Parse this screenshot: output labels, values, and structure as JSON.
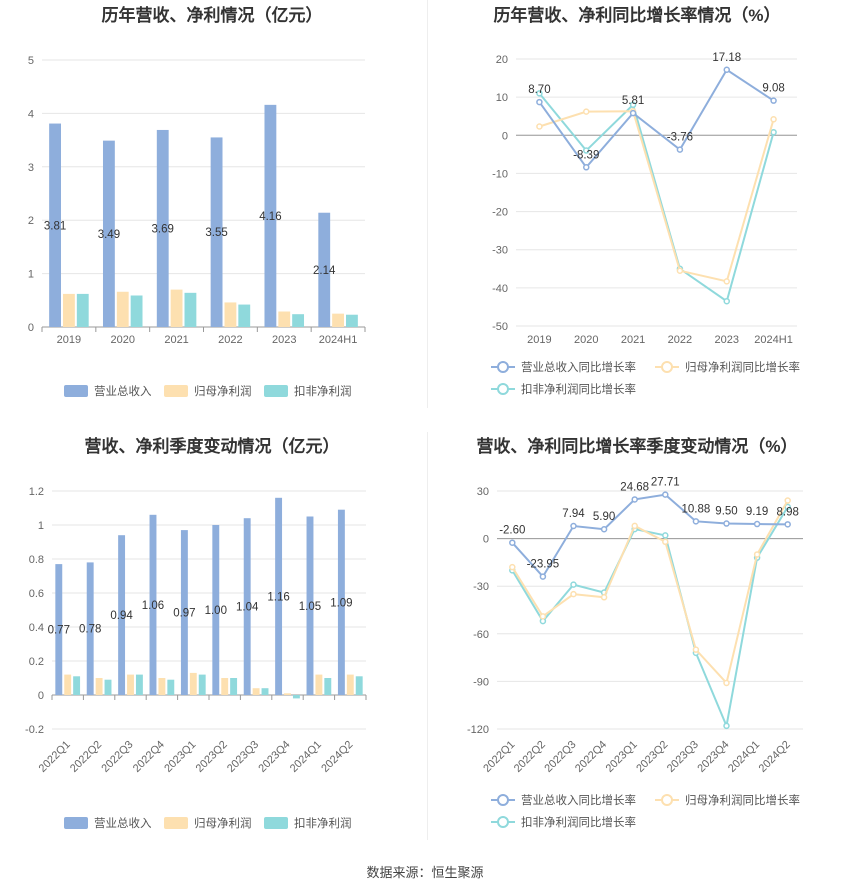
{
  "source_text": "数据来源：恒生聚源",
  "colors": {
    "revenue": "#8eaedc",
    "parent_np": "#fde0b0",
    "deducted_np": "#8fd9dc"
  },
  "chart_data": [
    {
      "id": "annual_amount",
      "type": "bar",
      "title": "历年营收、净利情况（亿元）",
      "categories": [
        "2019",
        "2020",
        "2021",
        "2022",
        "2023",
        "2024H1"
      ],
      "ylim": [
        0,
        5
      ],
      "yticks": [
        "0",
        "1",
        "2",
        "3",
        "4",
        "5"
      ],
      "ytick_values": [
        0,
        1,
        2,
        3,
        4,
        5
      ],
      "grid": true,
      "legend": "bottom",
      "series": [
        {
          "name": "营业总收入",
          "values": [
            3.81,
            3.49,
            3.69,
            3.55,
            4.16,
            2.14
          ],
          "labels": [
            "3.81",
            "3.49",
            "3.69",
            "3.55",
            "4.16",
            "2.14"
          ]
        },
        {
          "name": "归母净利润",
          "values": [
            0.62,
            0.66,
            0.7,
            0.46,
            0.29,
            0.25
          ]
        },
        {
          "name": "扣非净利润",
          "values": [
            0.62,
            0.59,
            0.64,
            0.42,
            0.24,
            0.23
          ]
        }
      ]
    },
    {
      "id": "annual_growth",
      "type": "line",
      "title": "历年营收、净利同比增长率情况（%）",
      "categories": [
        "2019",
        "2020",
        "2021",
        "2022",
        "2023",
        "2024H1"
      ],
      "ylim": [
        -50,
        20
      ],
      "yticks": [
        "-50",
        "-40",
        "-30",
        "-20",
        "-10",
        "0",
        "10",
        "20"
      ],
      "ytick_values": [
        -50,
        -40,
        -30,
        -20,
        -10,
        0,
        10,
        20
      ],
      "grid": true,
      "legend": "bottom",
      "series": [
        {
          "name": "营业总收入同比增长率",
          "values": [
            8.7,
            -8.39,
            5.81,
            -3.76,
            17.18,
            9.08
          ],
          "labels": [
            "8.70",
            "-8.39",
            "5.81",
            "-3.76",
            "17.18",
            "9.08"
          ]
        },
        {
          "name": "归母净利润同比增长率",
          "values": [
            2.3,
            6.2,
            6.3,
            -35.5,
            -38.3,
            4.2
          ]
        },
        {
          "name": "扣非净利润同比增长率",
          "values": [
            11.0,
            -4.0,
            8.0,
            -35.0,
            -43.5,
            0.8
          ]
        }
      ]
    },
    {
      "id": "quarterly_amount",
      "type": "bar",
      "title": "营收、净利季度变动情况（亿元）",
      "categories": [
        "2022Q1",
        "2022Q2",
        "2022Q3",
        "2022Q4",
        "2023Q1",
        "2023Q2",
        "2023Q3",
        "2023Q4",
        "2024Q1",
        "2024Q2"
      ],
      "ylim": [
        -0.2,
        1.2
      ],
      "yticks": [
        "-0.2",
        "0",
        "0.2",
        "0.4",
        "0.6",
        "0.8",
        "1",
        "1.2"
      ],
      "ytick_values": [
        -0.2,
        0,
        0.2,
        0.4,
        0.6,
        0.8,
        1.0,
        1.2
      ],
      "grid": true,
      "legend": "bottom",
      "series": [
        {
          "name": "营业总收入",
          "values": [
            0.77,
            0.78,
            0.94,
            1.06,
            0.97,
            1.0,
            1.04,
            1.16,
            1.05,
            1.09
          ],
          "labels": [
            "0.77",
            "0.78",
            "0.94",
            "1.06",
            "0.97",
            "1.00",
            "1.04",
            "1.16",
            "1.05",
            "1.09"
          ]
        },
        {
          "name": "归母净利润",
          "values": [
            0.12,
            0.1,
            0.12,
            0.1,
            0.13,
            0.1,
            0.04,
            0.01,
            0.12,
            0.12
          ]
        },
        {
          "name": "扣非净利润",
          "values": [
            0.11,
            0.09,
            0.12,
            0.09,
            0.12,
            0.1,
            0.04,
            -0.02,
            0.1,
            0.11
          ]
        }
      ]
    },
    {
      "id": "quarterly_growth",
      "type": "line",
      "title": "营收、净利同比增长率季度变动情况（%）",
      "categories": [
        "2022Q1",
        "2022Q2",
        "2022Q3",
        "2022Q4",
        "2023Q1",
        "2023Q2",
        "2023Q3",
        "2023Q4",
        "2024Q1",
        "2024Q2"
      ],
      "ylim": [
        -120,
        30
      ],
      "yticks": [
        "-120",
        "-90",
        "-60",
        "-30",
        "0",
        "30"
      ],
      "ytick_values": [
        -120,
        -90,
        -60,
        -30,
        0,
        30
      ],
      "grid": true,
      "legend": "bottom",
      "series": [
        {
          "name": "营业总收入同比增长率",
          "values": [
            -2.6,
            -23.95,
            7.94,
            5.9,
            24.68,
            27.71,
            10.88,
            9.5,
            9.19,
            8.98
          ],
          "labels": [
            "-2.60",
            "-23.95",
            "7.94",
            "5.90",
            "24.68",
            "27.71",
            "10.88",
            "9.50",
            "9.19",
            "8.98"
          ]
        },
        {
          "name": "归母净利润同比增长率",
          "values": [
            -18,
            -49,
            -35,
            -37,
            8,
            -2,
            -70,
            -91,
            -10,
            24
          ]
        },
        {
          "name": "扣非净利润同比增长率",
          "values": [
            -20,
            -52,
            -29,
            -34,
            6,
            2,
            -72,
            -118,
            -12,
            20
          ]
        }
      ]
    }
  ]
}
